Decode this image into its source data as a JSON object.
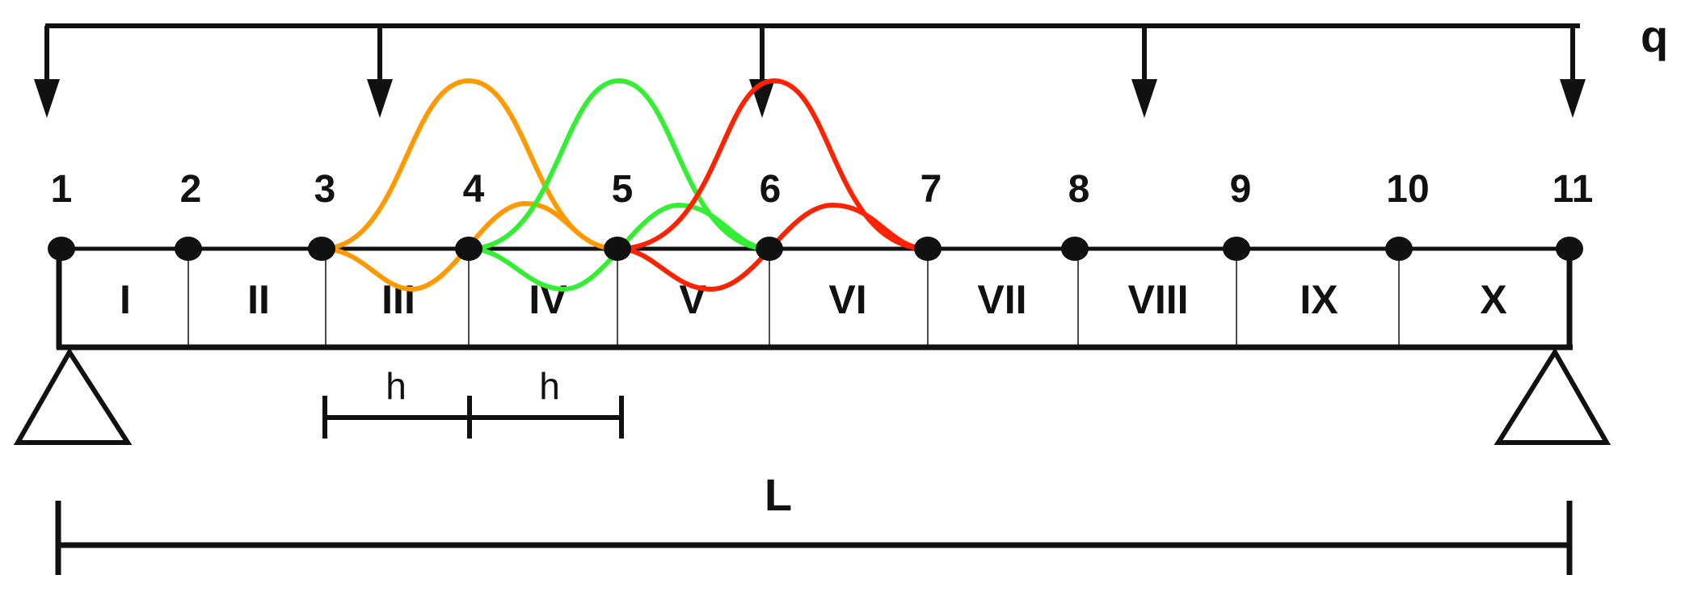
{
  "load_label": "q",
  "span_label": "L",
  "spacing_label": "h",
  "node_labels": [
    "1",
    "2",
    "3",
    "4",
    "5",
    "6",
    "7",
    "8",
    "9",
    "10",
    "11"
  ],
  "segment_labels": [
    "I",
    "II",
    "III",
    "IV",
    "V",
    "VI",
    "VII",
    "VIII",
    "IX",
    "X"
  ],
  "colors": {
    "line": "#111111",
    "curve_1": "#ff9900",
    "curve_2": "#33ee33",
    "curve_3": "#ff2200"
  }
}
